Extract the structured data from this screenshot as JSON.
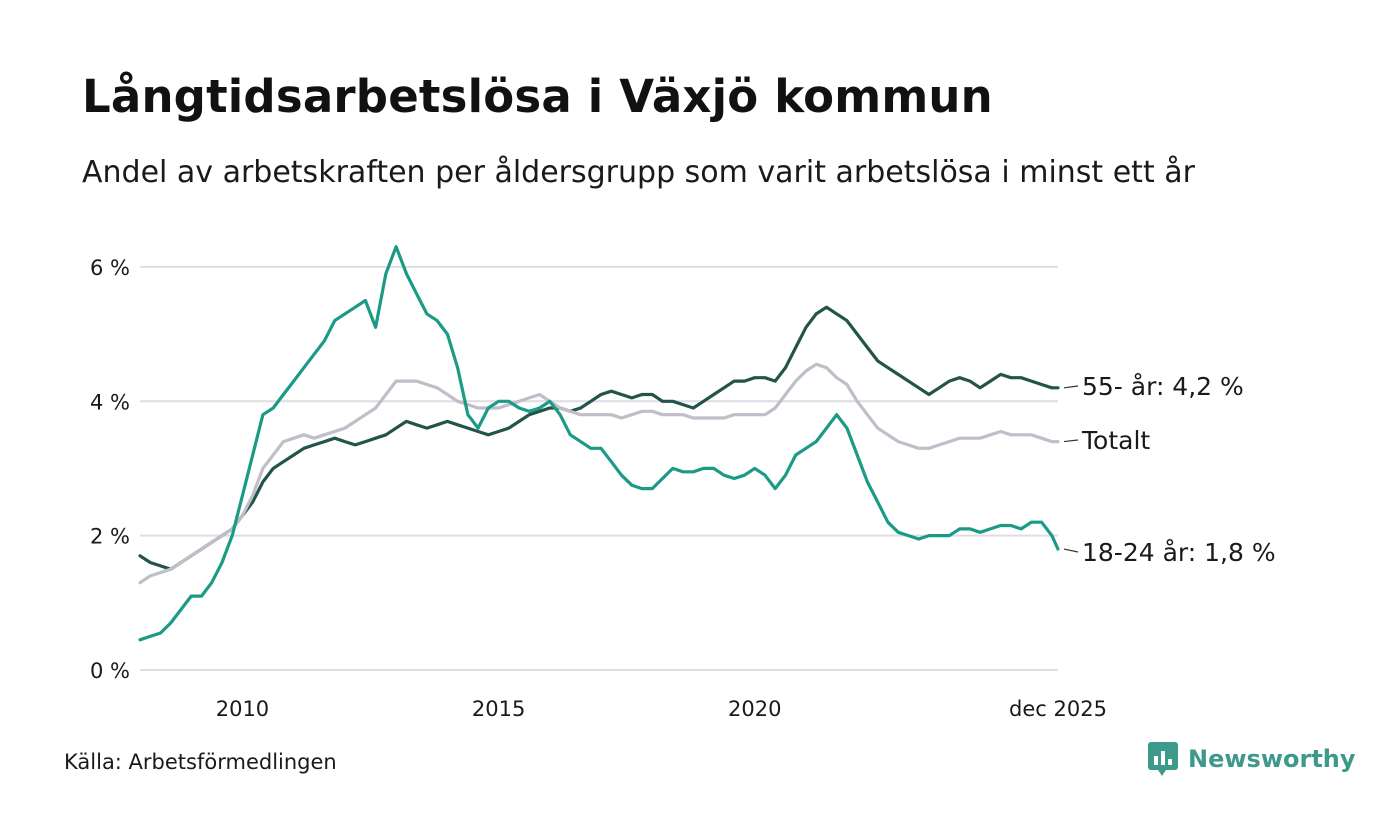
{
  "title": "Långtidsarbetslösa i Växjö kommun",
  "subtitle": "Andel av arbetskraften per åldersgrupp som varit arbetslösa i minst ett år",
  "source": "Källa: Arbetsförmedlingen",
  "brand": "Newsworthy",
  "chart_data": {
    "type": "line",
    "title": "Långtidsarbetslösa i Växjö kommun",
    "xlabel": "",
    "ylabel": "",
    "xlim": [
      2008.0,
      2025.92
    ],
    "ylim": [
      0,
      6.4
    ],
    "yticks": [
      0,
      2,
      4,
      6
    ],
    "ytick_labels": [
      "0 %",
      "2 %",
      "4 %",
      "6 %"
    ],
    "xticks": [
      2010,
      2015,
      2020,
      2025.92
    ],
    "xtick_labels": [
      "2010",
      "2015",
      "2020",
      "dec 2025"
    ],
    "grid": true,
    "series": [
      {
        "name": "55- år",
        "end_label": "55- år: 4,2 %",
        "color": "#23544a",
        "x": [
          2008.0,
          2008.2,
          2008.4,
          2008.6,
          2008.8,
          2009.0,
          2009.2,
          2009.4,
          2009.6,
          2009.8,
          2010.0,
          2010.2,
          2010.4,
          2010.6,
          2010.8,
          2011.0,
          2011.2,
          2011.4,
          2011.6,
          2011.8,
          2012.0,
          2012.2,
          2012.4,
          2012.6,
          2012.8,
          2013.0,
          2013.2,
          2013.4,
          2013.6,
          2013.8,
          2014.0,
          2014.2,
          2014.4,
          2014.6,
          2014.8,
          2015.0,
          2015.2,
          2015.4,
          2015.6,
          2015.8,
          2016.0,
          2016.2,
          2016.4,
          2016.6,
          2016.8,
          2017.0,
          2017.2,
          2017.4,
          2017.6,
          2017.8,
          2018.0,
          2018.2,
          2018.4,
          2018.6,
          2018.8,
          2019.0,
          2019.2,
          2019.4,
          2019.6,
          2019.8,
          2020.0,
          2020.2,
          2020.4,
          2020.6,
          2020.8,
          2021.0,
          2021.2,
          2021.4,
          2021.6,
          2021.8,
          2022.0,
          2022.2,
          2022.4,
          2022.6,
          2022.8,
          2023.0,
          2023.2,
          2023.4,
          2023.6,
          2023.8,
          2024.0,
          2024.2,
          2024.4,
          2024.6,
          2024.8,
          2025.0,
          2025.2,
          2025.4,
          2025.6,
          2025.8,
          2025.92
        ],
        "values": [
          1.7,
          1.6,
          1.55,
          1.5,
          1.6,
          1.7,
          1.8,
          1.9,
          2.0,
          2.1,
          2.3,
          2.5,
          2.8,
          3.0,
          3.1,
          3.2,
          3.3,
          3.35,
          3.4,
          3.45,
          3.4,
          3.35,
          3.4,
          3.45,
          3.5,
          3.6,
          3.7,
          3.65,
          3.6,
          3.65,
          3.7,
          3.65,
          3.6,
          3.55,
          3.5,
          3.55,
          3.6,
          3.7,
          3.8,
          3.85,
          3.9,
          3.9,
          3.85,
          3.9,
          4.0,
          4.1,
          4.15,
          4.1,
          4.05,
          4.1,
          4.1,
          4.0,
          4.0,
          3.95,
          3.9,
          4.0,
          4.1,
          4.2,
          4.3,
          4.3,
          4.35,
          4.35,
          4.3,
          4.5,
          4.8,
          5.1,
          5.3,
          5.4,
          5.3,
          5.2,
          5.0,
          4.8,
          4.6,
          4.5,
          4.4,
          4.3,
          4.2,
          4.1,
          4.2,
          4.3,
          4.35,
          4.3,
          4.2,
          4.3,
          4.4,
          4.35,
          4.35,
          4.3,
          4.25,
          4.2,
          4.2
        ]
      },
      {
        "name": "Totalt",
        "end_label": "Totalt",
        "color": "#bfbec9",
        "x": [
          2008.0,
          2008.2,
          2008.4,
          2008.6,
          2008.8,
          2009.0,
          2009.2,
          2009.4,
          2009.6,
          2009.8,
          2010.0,
          2010.2,
          2010.4,
          2010.6,
          2010.8,
          2011.0,
          2011.2,
          2011.4,
          2011.6,
          2011.8,
          2012.0,
          2012.2,
          2012.4,
          2012.6,
          2012.8,
          2013.0,
          2013.2,
          2013.4,
          2013.6,
          2013.8,
          2014.0,
          2014.2,
          2014.4,
          2014.6,
          2014.8,
          2015.0,
          2015.2,
          2015.4,
          2015.6,
          2015.8,
          2016.0,
          2016.2,
          2016.4,
          2016.6,
          2016.8,
          2017.0,
          2017.2,
          2017.4,
          2017.6,
          2017.8,
          2018.0,
          2018.2,
          2018.4,
          2018.6,
          2018.8,
          2019.0,
          2019.2,
          2019.4,
          2019.6,
          2019.8,
          2020.0,
          2020.2,
          2020.4,
          2020.6,
          2020.8,
          2021.0,
          2021.2,
          2021.4,
          2021.6,
          2021.8,
          2022.0,
          2022.2,
          2022.4,
          2022.6,
          2022.8,
          2023.0,
          2023.2,
          2023.4,
          2023.6,
          2023.8,
          2024.0,
          2024.2,
          2024.4,
          2024.6,
          2024.8,
          2025.0,
          2025.2,
          2025.4,
          2025.6,
          2025.8,
          2025.92
        ],
        "values": [
          1.3,
          1.4,
          1.45,
          1.5,
          1.6,
          1.7,
          1.8,
          1.9,
          2.0,
          2.1,
          2.3,
          2.6,
          3.0,
          3.2,
          3.4,
          3.45,
          3.5,
          3.45,
          3.5,
          3.55,
          3.6,
          3.7,
          3.8,
          3.9,
          4.1,
          4.3,
          4.3,
          4.3,
          4.25,
          4.2,
          4.1,
          4.0,
          3.95,
          3.9,
          3.9,
          3.9,
          3.95,
          4.0,
          4.05,
          4.1,
          4.0,
          3.9,
          3.85,
          3.8,
          3.8,
          3.8,
          3.8,
          3.75,
          3.8,
          3.85,
          3.85,
          3.8,
          3.8,
          3.8,
          3.75,
          3.75,
          3.75,
          3.75,
          3.8,
          3.8,
          3.8,
          3.8,
          3.9,
          4.1,
          4.3,
          4.45,
          4.55,
          4.5,
          4.35,
          4.25,
          4.0,
          3.8,
          3.6,
          3.5,
          3.4,
          3.35,
          3.3,
          3.3,
          3.35,
          3.4,
          3.45,
          3.45,
          3.45,
          3.5,
          3.55,
          3.5,
          3.5,
          3.5,
          3.45,
          3.4,
          3.4
        ]
      },
      {
        "name": "18-24 år",
        "end_label": "18-24 år: 1,8 %",
        "color": "#1b9a86",
        "x": [
          2008.0,
          2008.2,
          2008.4,
          2008.6,
          2008.8,
          2009.0,
          2009.2,
          2009.4,
          2009.6,
          2009.8,
          2010.0,
          2010.2,
          2010.4,
          2010.6,
          2010.8,
          2011.0,
          2011.2,
          2011.4,
          2011.6,
          2011.8,
          2012.0,
          2012.2,
          2012.4,
          2012.6,
          2012.8,
          2013.0,
          2013.2,
          2013.4,
          2013.6,
          2013.8,
          2014.0,
          2014.2,
          2014.4,
          2014.6,
          2014.8,
          2015.0,
          2015.2,
          2015.4,
          2015.6,
          2015.8,
          2016.0,
          2016.2,
          2016.4,
          2016.6,
          2016.8,
          2017.0,
          2017.2,
          2017.4,
          2017.6,
          2017.8,
          2018.0,
          2018.2,
          2018.4,
          2018.6,
          2018.8,
          2019.0,
          2019.2,
          2019.4,
          2019.6,
          2019.8,
          2020.0,
          2020.2,
          2020.4,
          2020.6,
          2020.8,
          2021.0,
          2021.2,
          2021.4,
          2021.6,
          2021.8,
          2022.0,
          2022.2,
          2022.4,
          2022.6,
          2022.8,
          2023.0,
          2023.2,
          2023.4,
          2023.6,
          2023.8,
          2024.0,
          2024.2,
          2024.4,
          2024.6,
          2024.8,
          2025.0,
          2025.2,
          2025.4,
          2025.6,
          2025.8,
          2025.92
        ],
        "values": [
          0.45,
          0.5,
          0.55,
          0.7,
          0.9,
          1.1,
          1.1,
          1.3,
          1.6,
          2.0,
          2.6,
          3.2,
          3.8,
          3.9,
          4.1,
          4.3,
          4.5,
          4.7,
          4.9,
          5.2,
          5.3,
          5.4,
          5.5,
          5.1,
          5.9,
          6.3,
          5.9,
          5.6,
          5.3,
          5.2,
          5.0,
          4.5,
          3.8,
          3.6,
          3.9,
          4.0,
          4.0,
          3.9,
          3.85,
          3.9,
          4.0,
          3.8,
          3.5,
          3.4,
          3.3,
          3.3,
          3.1,
          2.9,
          2.75,
          2.7,
          2.7,
          2.85,
          3.0,
          2.95,
          2.95,
          3.0,
          3.0,
          2.9,
          2.85,
          2.9,
          3.0,
          2.9,
          2.7,
          2.9,
          3.2,
          3.3,
          3.4,
          3.6,
          3.8,
          3.6,
          3.2,
          2.8,
          2.5,
          2.2,
          2.05,
          2.0,
          1.95,
          2.0,
          2.0,
          2.0,
          2.1,
          2.1,
          2.05,
          2.1,
          2.15,
          2.15,
          2.1,
          2.2,
          2.2,
          2.0,
          1.8
        ]
      }
    ]
  }
}
